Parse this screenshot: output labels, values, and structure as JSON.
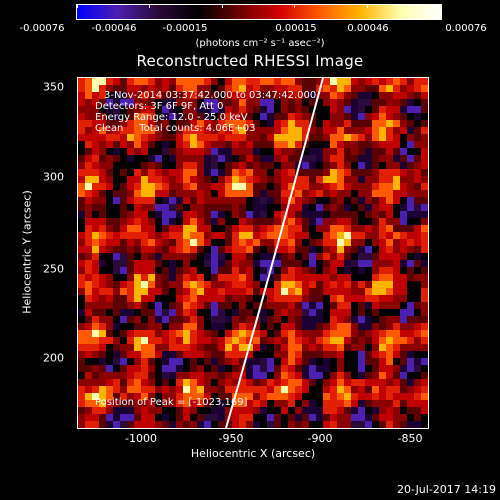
{
  "colorbar": {
    "ticks": [
      "-0.00076",
      "-0.00046",
      "-0.00015",
      "0.00015",
      "0.00046",
      "0.00076"
    ],
    "units": "(photons cm⁻² s⁻¹ asec⁻²)"
  },
  "title": "Reconstructed RHESSI Image",
  "info": {
    "line1": "3-Nov-2014 03:37:42.000 to 03:47:42.000",
    "line2": "Detectors: 3F 6F 9F, Att 0",
    "line3": "Energy Range: 12.0 - 25.0 keV",
    "line4": "Clean     Total counts: 4.06E+03",
    "peak": "Position of Peak = [-1023,169]"
  },
  "axes": {
    "xlabel": "Heliocentric X (arcsec)",
    "ylabel": "Heliocentric Y (arcsec)",
    "xticks": [
      "-1000",
      "-950",
      "-900",
      "-850"
    ],
    "yticks": [
      "350",
      "300",
      "250",
      "200"
    ],
    "xrange": [
      -1035,
      -837
    ],
    "yrange": [
      160,
      358
    ]
  },
  "datestamp": "20-Jul-2017 14:19"
}
